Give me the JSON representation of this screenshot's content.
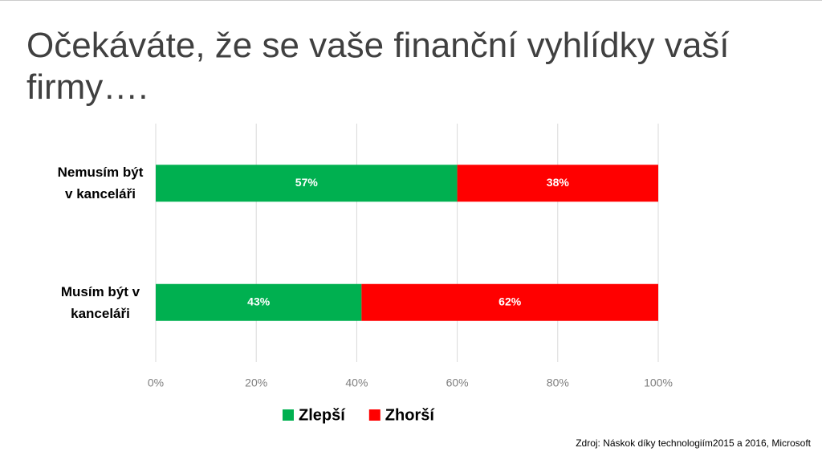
{
  "chart_data": {
    "type": "bar",
    "orientation": "horizontal",
    "stacking": "percent",
    "title": "Očekáváte, že se vaše finanční vyhlídky vaší firmy….",
    "categories": [
      "Nemusím být v kanceláři",
      "Musím být v kanceláři"
    ],
    "series": [
      {
        "name": "Zlepší",
        "color": "#00b050",
        "values": [
          57,
          43
        ],
        "value_labels": [
          "57%",
          "43%"
        ]
      },
      {
        "name": "Zhorší",
        "color": "#ff0000",
        "values": [
          38,
          62
        ],
        "value_labels": [
          "38%",
          "62%"
        ]
      }
    ],
    "xlim": [
      0,
      100
    ],
    "xticks": [
      {
        "value": 0,
        "label": "0%"
      },
      {
        "value": 20,
        "label": "20%"
      },
      {
        "value": 40,
        "label": "40%"
      },
      {
        "value": 60,
        "label": "60%"
      },
      {
        "value": 80,
        "label": "80%"
      },
      {
        "value": 100,
        "label": "100%"
      }
    ],
    "grid": true,
    "legend": "bottom",
    "source": "Zdroj: Náskok díky technologiím2015 a  2016, Microsoft"
  }
}
